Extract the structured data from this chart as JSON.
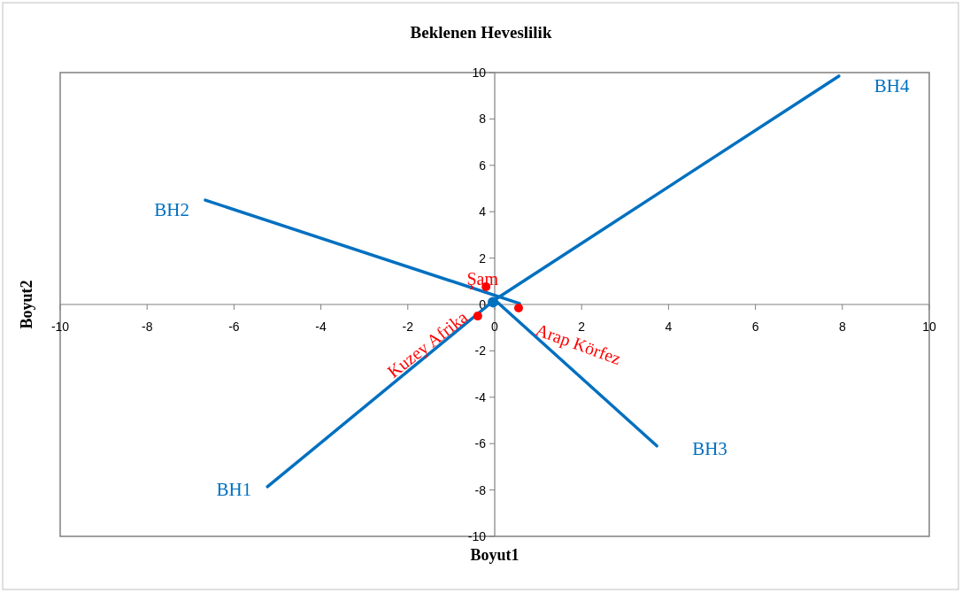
{
  "chart_data": {
    "type": "line",
    "title": "Beklenen Heveslilik",
    "xlabel": "Boyut1",
    "ylabel": "Boyut2",
    "xlim": [
      -10,
      10
    ],
    "ylim": [
      -10,
      10
    ],
    "xticks": [
      -10,
      -8,
      -6,
      -4,
      -2,
      0,
      2,
      4,
      6,
      8,
      10
    ],
    "yticks": [
      -10,
      -8,
      -6,
      -4,
      -2,
      0,
      2,
      4,
      6,
      8,
      10
    ],
    "grid": false,
    "marker": "none",
    "line_style": "solid",
    "series": [
      {
        "name": "BH1",
        "color": "#0070c0",
        "x": [
          0,
          -5.23
        ],
        "values": [
          0.2,
          -7.86
        ]
      },
      {
        "name": "BH2",
        "color": "#0070c0",
        "x": [
          0.57,
          -6.66
        ],
        "values": [
          0.04,
          4.5
        ]
      },
      {
        "name": "BH3",
        "color": "#0070c0",
        "x": [
          0,
          3.73
        ],
        "values": [
          0.2,
          -6.1
        ]
      },
      {
        "name": "BH4",
        "color": "#0070c0",
        "x": [
          0,
          7.92
        ],
        "values": [
          0.2,
          9.85
        ]
      },
      {
        "type": "scatter",
        "color": "#0070c0",
        "x": [
          -0.04
        ],
        "values": [
          0.1
        ],
        "marker": "circle"
      },
      {
        "type": "scatter",
        "color": "#ff0000",
        "x": [
          -0.2,
          -0.39,
          0.55
        ],
        "values": [
          0.76,
          -0.5,
          -0.15
        ],
        "marker": "circle"
      }
    ],
    "annotations": [
      {
        "text": "Şam",
        "x": -0.2,
        "y": 0.76
      },
      {
        "text": "Kuzey Afrika",
        "x": -0.39,
        "y": -0.5
      },
      {
        "text": "Arap Körfez",
        "x": 0.55,
        "y": -0.15
      }
    ]
  }
}
